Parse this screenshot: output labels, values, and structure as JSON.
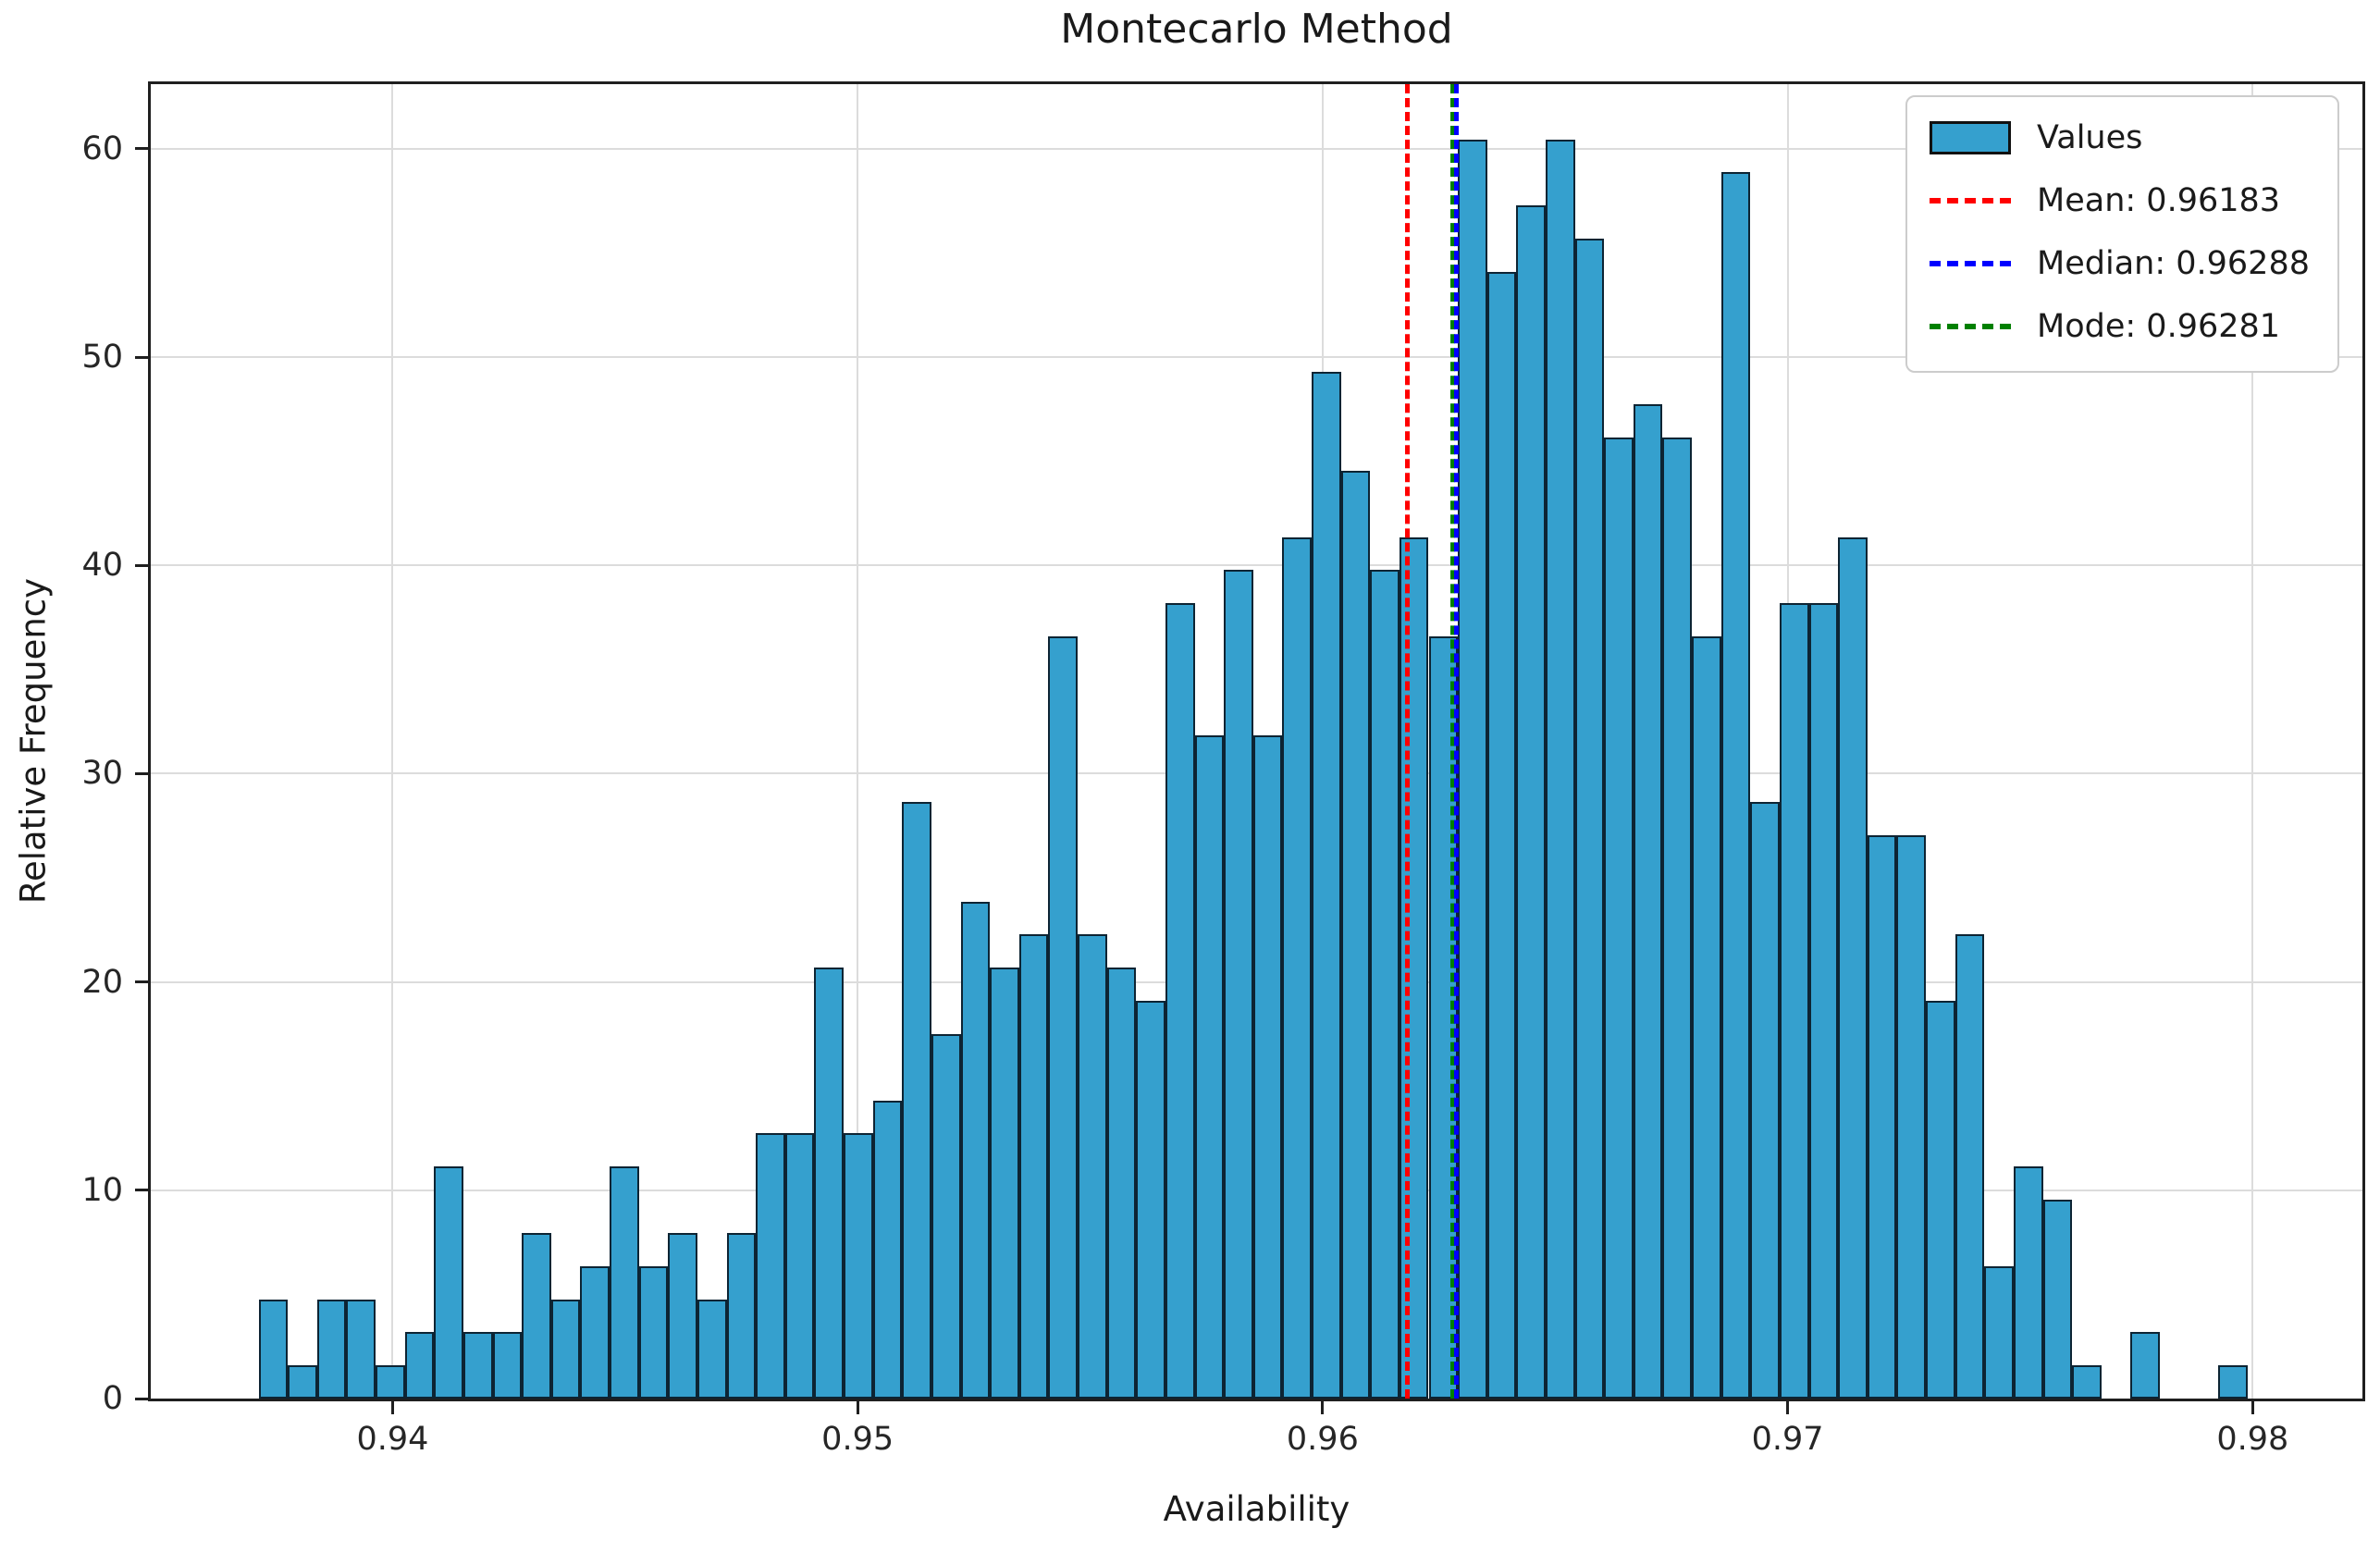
{
  "figure": {
    "title": "Montecarlo Method"
  },
  "axes": {
    "xlabel": "Availability",
    "ylabel": "Relative Frequency"
  },
  "legend": {
    "items": [
      {
        "label": "Values",
        "swatch": "patch",
        "key": "bars"
      },
      {
        "label": "Mean: 0.96183",
        "swatch": "line",
        "key": "mean"
      },
      {
        "label": "Median: 0.96288",
        "swatch": "line",
        "key": "median"
      },
      {
        "label": "Mode: 0.96281",
        "swatch": "line",
        "key": "mode"
      }
    ]
  },
  "colors": {
    "bars": "#35a0ce",
    "bar_edge": "#0d2433",
    "mean": "#ff0000",
    "median": "#0000ff",
    "mode": "#008000",
    "grid": "#dcdcdc",
    "spine": "#1f1f1f",
    "tick": "#1f1f1f"
  },
  "chart_data": {
    "type": "bar",
    "subtype": "histogram",
    "title": "Montecarlo Method",
    "xlabel": "Availability",
    "ylabel": "Relative Frequency",
    "xlim": [
      0.9348,
      0.98236
    ],
    "ylim": [
      0,
      63.1
    ],
    "grid": true,
    "legend_position": "upper right",
    "x_ticks": [
      0.94,
      0.95,
      0.96,
      0.97,
      0.98
    ],
    "x_tick_labels": [
      "0.94",
      "0.95",
      "0.96",
      "0.97",
      "0.98"
    ],
    "y_ticks": [
      0,
      10,
      20,
      30,
      40,
      50,
      60
    ],
    "y_tick_labels": [
      "0",
      "10",
      "20",
      "30",
      "40",
      "50",
      "60"
    ],
    "bin_start": 0.93712,
    "bin_width": 0.000629,
    "values": [
      4.77,
      1.59,
      4.77,
      4.77,
      1.59,
      3.18,
      11.14,
      3.18,
      3.18,
      7.95,
      4.77,
      6.36,
      11.14,
      6.36,
      7.95,
      4.77,
      7.95,
      12.73,
      12.73,
      20.68,
      12.73,
      14.32,
      28.63,
      17.5,
      23.86,
      20.68,
      22.27,
      36.59,
      22.27,
      20.68,
      19.09,
      38.18,
      31.82,
      39.77,
      31.82,
      41.36,
      49.31,
      44.54,
      39.77,
      41.36,
      36.59,
      60.45,
      54.09,
      57.27,
      60.45,
      55.68,
      46.13,
      47.72,
      46.13,
      36.59,
      58.86,
      28.63,
      38.18,
      38.18,
      41.36,
      27.04,
      27.04,
      19.09,
      22.27,
      6.36,
      11.14,
      9.54,
      1.59,
      0,
      3.18,
      0,
      0,
      1.59
    ],
    "mean": 0.96183,
    "median": 0.96288,
    "mode": 0.96281
  }
}
